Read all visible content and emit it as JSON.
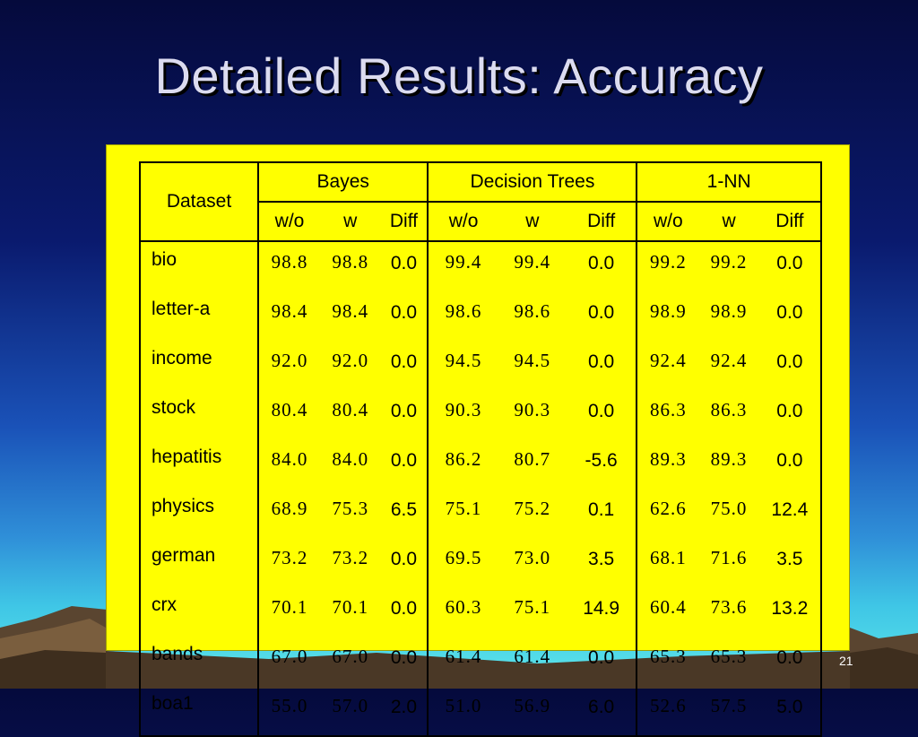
{
  "slide": {
    "title": "Detailed Results: Accuracy",
    "page_number": "21"
  },
  "colors": {
    "panel_background": "#ffff00",
    "title_text": "#dcdcf0",
    "page_background_top": "#050a3c",
    "page_background_bottom": "#5fe8ea"
  },
  "table": {
    "dataset_header": "Dataset",
    "groups": [
      "Bayes",
      "Decision Trees",
      "1-NN"
    ],
    "subheaders": [
      "w/o",
      "w",
      "Diff"
    ],
    "rows": [
      {
        "dataset": "bio",
        "values": [
          "98.8",
          "98.8",
          "0.0",
          "99.4",
          "99.4",
          "0.0",
          "99.2",
          "99.2",
          "0.0"
        ]
      },
      {
        "dataset": "letter-a",
        "values": [
          "98.4",
          "98.4",
          "0.0",
          "98.6",
          "98.6",
          "0.0",
          "98.9",
          "98.9",
          "0.0"
        ]
      },
      {
        "dataset": "income",
        "values": [
          "92.0",
          "92.0",
          "0.0",
          "94.5",
          "94.5",
          "0.0",
          "92.4",
          "92.4",
          "0.0"
        ]
      },
      {
        "dataset": "stock",
        "values": [
          "80.4",
          "80.4",
          "0.0",
          "90.3",
          "90.3",
          "0.0",
          "86.3",
          "86.3",
          "0.0"
        ]
      },
      {
        "dataset": "hepatitis",
        "values": [
          "84.0",
          "84.0",
          "0.0",
          "86.2",
          "80.7",
          "-5.6",
          "89.3",
          "89.3",
          "0.0"
        ]
      },
      {
        "dataset": "physics",
        "values": [
          "68.9",
          "75.3",
          "6.5",
          "75.1",
          "75.2",
          "0.1",
          "62.6",
          "75.0",
          "12.4"
        ]
      },
      {
        "dataset": "german",
        "values": [
          "73.2",
          "73.2",
          "0.0",
          "69.5",
          "73.0",
          "3.5",
          "68.1",
          "71.6",
          "3.5"
        ]
      },
      {
        "dataset": "crx",
        "values": [
          "70.1",
          "70.1",
          "0.0",
          "60.3",
          "75.1",
          "14.9",
          "60.4",
          "73.6",
          "13.2"
        ]
      },
      {
        "dataset": "bands",
        "values": [
          "67.0",
          "67.0",
          "0.0",
          "61.4",
          "61.4",
          "0.0",
          "65.3",
          "65.3",
          "0.0"
        ]
      },
      {
        "dataset": "boa1",
        "values": [
          "55.0",
          "57.0",
          "2.0",
          "51.0",
          "56.9",
          "6.0",
          "52.6",
          "57.5",
          "5.0"
        ]
      }
    ]
  }
}
